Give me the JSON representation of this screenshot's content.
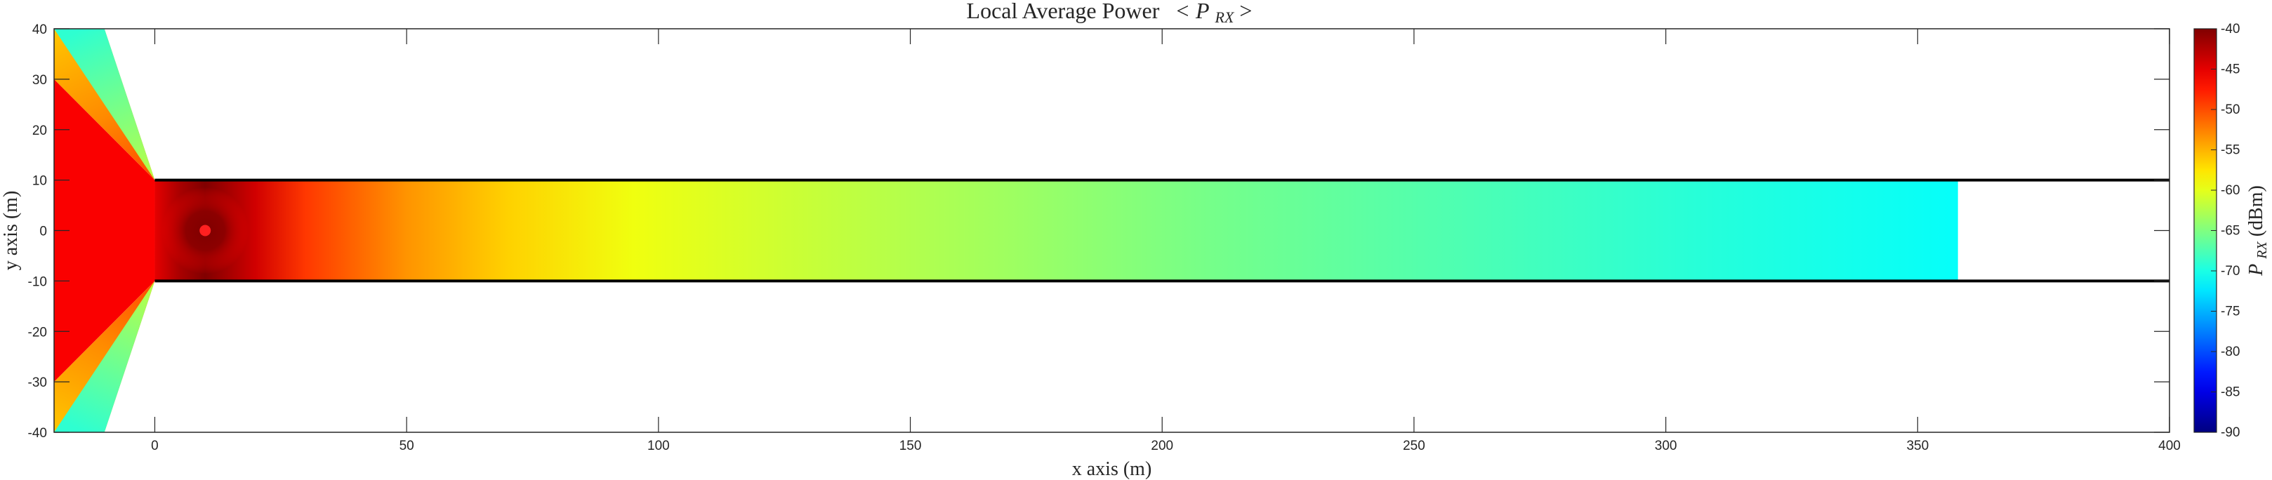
{
  "chart_data": {
    "type": "heatmap",
    "title": "Local Average Power",
    "title_math": "< P",
    "title_math_sub": "RX",
    "title_math_end": " >",
    "xlabel": "x axis (m)",
    "ylabel": "y axis (m)",
    "xlim": [
      -20,
      400
    ],
    "ylim": [
      -40,
      40
    ],
    "xticks": [
      0,
      50,
      100,
      150,
      200,
      250,
      300,
      350,
      400
    ],
    "yticks": [
      -40,
      -30,
      -20,
      -10,
      0,
      10,
      20,
      30,
      40
    ],
    "grid": false,
    "colorbar": {
      "label_main": "P",
      "label_sub": "RX",
      "label_unit": " (dBm)",
      "range": [
        -90,
        -40
      ],
      "ticks": [
        -90,
        -85,
        -80,
        -75,
        -70,
        -65,
        -60,
        -55,
        -50,
        -45,
        -40
      ],
      "colormap": "jet",
      "placement": "right"
    },
    "corridor": {
      "x_start": 0,
      "x_end": 358,
      "y_walls": [
        10,
        -10
      ]
    },
    "transmitter": {
      "x": 10,
      "y": 0,
      "color": "#ff2020"
    },
    "power_profile_along_x": [
      {
        "x": 0,
        "power_dbm": -45
      },
      {
        "x": 5,
        "power_dbm": -42
      },
      {
        "x": 10,
        "power_dbm": -40
      },
      {
        "x": 20,
        "power_dbm": -44
      },
      {
        "x": 30,
        "power_dbm": -49
      },
      {
        "x": 50,
        "power_dbm": -53.5
      },
      {
        "x": 70,
        "power_dbm": -56.5
      },
      {
        "x": 95,
        "power_dbm": -59.5
      },
      {
        "x": 130,
        "power_dbm": -61.5
      },
      {
        "x": 170,
        "power_dbm": -63.5
      },
      {
        "x": 210,
        "power_dbm": -65.5
      },
      {
        "x": 260,
        "power_dbm": -67.5
      },
      {
        "x": 310,
        "power_dbm": -69.5
      },
      {
        "x": 358,
        "power_dbm": -71
      }
    ],
    "outer_regions": [
      {
        "name": "upper",
        "x_range": [
          -20,
          0
        ],
        "y_range": [
          10,
          40
        ],
        "power_dbm_near": -50,
        "power_dbm_far": -70
      },
      {
        "name": "lower",
        "x_range": [
          -20,
          0
        ],
        "y_range": [
          -40,
          -10
        ],
        "power_dbm_near": -50,
        "power_dbm_far": -70
      }
    ],
    "colors": {
      "wall": "#000000",
      "axis": "#262626"
    }
  }
}
